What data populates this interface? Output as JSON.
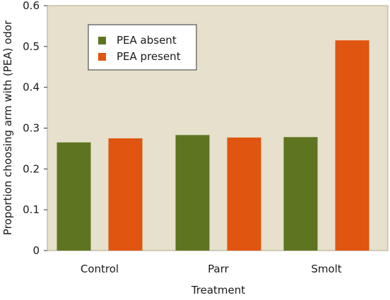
{
  "chart_data": {
    "type": "bar",
    "title": "",
    "xlabel": "Treatment",
    "ylabel": "Proportion choosing arm with (PEA) odor",
    "categories": [
      "Control",
      "Parr",
      "Smolt"
    ],
    "series": [
      {
        "name": "PEA absent",
        "color": "#5d7520",
        "values": [
          0.265,
          0.283,
          0.278
        ]
      },
      {
        "name": "PEA present",
        "color": "#e05510",
        "values": [
          0.275,
          0.277,
          0.515
        ]
      }
    ],
    "ylim": [
      0,
      0.6
    ],
    "yticks": [
      "0",
      "0.1",
      "0.2",
      "0.3",
      "0.4",
      "0.5",
      "0.6"
    ],
    "grid": false,
    "legend_position": "top-left",
    "plot_background": "#e6e0cc"
  }
}
